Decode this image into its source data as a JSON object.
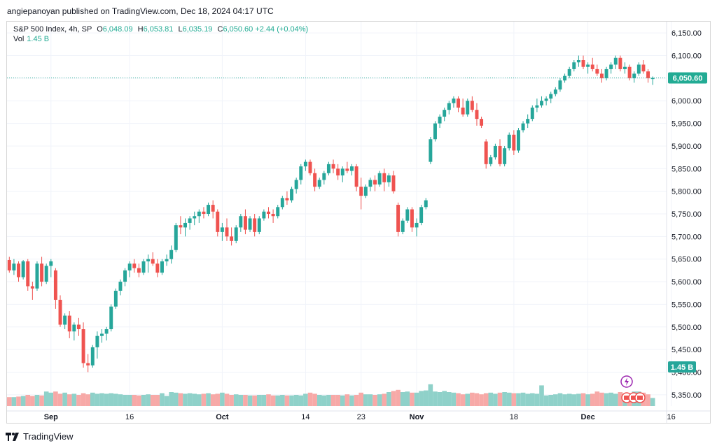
{
  "header": {
    "published": "angiepanoyan published on TradingView.com, Dec 18, 2024 04:17 UTC"
  },
  "legend": {
    "symbol": "S&P 500 Index, 4h, SP",
    "o_label": "O",
    "open": "6,048.09",
    "h_label": "H",
    "high": "6,053.81",
    "l_label": "L",
    "low": "6,035.19",
    "c_label": "C",
    "close": "6,050.60",
    "change": "+2.44 (+0.04%)",
    "vol_label": "Vol",
    "vol_value": "1.45 B"
  },
  "footer": {
    "brand": "TradingView",
    "logo_icon": "tradingview-logo-icon"
  },
  "colors": {
    "up": "#26a69a",
    "down": "#ef5350",
    "up_vol": "#8fd1c9",
    "down_vol": "#f7a9a7",
    "last": "#22ab94",
    "grid": "#f0f3fa"
  },
  "chart_data": {
    "type": "candlestick",
    "title": "S&P 500 Index, 4h, SP",
    "ylim": [
      5325,
      6175
    ],
    "y_ticks": [
      "6,150.00",
      "6,100.00",
      "6,050.00",
      "6,000.00",
      "5,950.00",
      "5,900.00",
      "5,850.00",
      "5,800.00",
      "5,750.00",
      "5,700.00",
      "5,650.00",
      "5,600.00",
      "5,550.00",
      "5,500.00",
      "5,450.00",
      "5,400.00",
      "5,350.00"
    ],
    "x_ticks": [
      {
        "label": "Sep",
        "i": 9
      },
      {
        "label": "16",
        "i": 26
      },
      {
        "label": "Oct",
        "i": 46
      },
      {
        "label": "14",
        "i": 64
      },
      {
        "label": "23",
        "i": 76
      },
      {
        "label": "Nov",
        "i": 88
      },
      {
        "label": "18",
        "i": 109
      },
      {
        "label": "Dec",
        "i": 125
      },
      {
        "label": "16",
        "i": 143
      }
    ],
    "last_price": 6050.6,
    "last_price_label": "6,050.60",
    "volume_label": "1.45 B",
    "volume_max": 9.0,
    "candles": [
      [
        5648,
        5655,
        5620,
        5625,
        1.6
      ],
      [
        5625,
        5650,
        5615,
        5640,
        1.6
      ],
      [
        5640,
        5645,
        5600,
        5610,
        1.7
      ],
      [
        5610,
        5648,
        5605,
        5645,
        1.8
      ],
      [
        5645,
        5650,
        5580,
        5590,
        2.0
      ],
      [
        5590,
        5600,
        5560,
        5585,
        1.8
      ],
      [
        5585,
        5645,
        5580,
        5640,
        2.0
      ],
      [
        5640,
        5655,
        5590,
        5600,
        1.9
      ],
      [
        5600,
        5640,
        5595,
        5635,
        2.6
      ],
      [
        5635,
        5650,
        5610,
        5645,
        2.4
      ],
      [
        5625,
        5630,
        5540,
        5560,
        2.6
      ],
      [
        5560,
        5570,
        5500,
        5505,
        2.2
      ],
      [
        5505,
        5530,
        5495,
        5525,
        2.4
      ],
      [
        5525,
        5535,
        5475,
        5490,
        2.1
      ],
      [
        5490,
        5510,
        5470,
        5505,
        2.2
      ],
      [
        5505,
        5520,
        5480,
        5495,
        2.0
      ],
      [
        5495,
        5510,
        5410,
        5420,
        2.3
      ],
      [
        5420,
        5440,
        5400,
        5415,
        2.1
      ],
      [
        5415,
        5460,
        5410,
        5455,
        2.4
      ],
      [
        5455,
        5490,
        5430,
        5480,
        2.2
      ],
      [
        5480,
        5495,
        5465,
        5485,
        2.3
      ],
      [
        5485,
        5500,
        5470,
        5495,
        2.2
      ],
      [
        5495,
        5550,
        5490,
        5545,
        2.3
      ],
      [
        5545,
        5585,
        5540,
        5580,
        2.2
      ],
      [
        5580,
        5605,
        5570,
        5600,
        2.1
      ],
      [
        5600,
        5630,
        5590,
        5625,
        2.0
      ],
      [
        5625,
        5645,
        5610,
        5640,
        2.0
      ],
      [
        5640,
        5650,
        5620,
        5630,
        2.0
      ],
      [
        5630,
        5640,
        5610,
        5620,
        1.9
      ],
      [
        5620,
        5650,
        5615,
        5645,
        2.0
      ],
      [
        5645,
        5660,
        5620,
        5650,
        2.1
      ],
      [
        5650,
        5665,
        5635,
        5640,
        2.0
      ],
      [
        5640,
        5650,
        5610,
        5620,
        2.0
      ],
      [
        5620,
        5650,
        5615,
        5645,
        2.3
      ],
      [
        5645,
        5660,
        5635,
        5650,
        1.8
      ],
      [
        5650,
        5680,
        5640,
        5670,
        2.5
      ],
      [
        5670,
        5730,
        5665,
        5725,
        2.4
      ],
      [
        5725,
        5745,
        5705,
        5720,
        2.3
      ],
      [
        5720,
        5740,
        5700,
        5730,
        2.2
      ],
      [
        5730,
        5745,
        5715,
        5740,
        2.3
      ],
      [
        5740,
        5755,
        5725,
        5745,
        2.2
      ],
      [
        5745,
        5760,
        5730,
        5755,
        2.1
      ],
      [
        5755,
        5765,
        5740,
        5750,
        2.2
      ],
      [
        5750,
        5775,
        5745,
        5770,
        2.3
      ],
      [
        5770,
        5780,
        5740,
        5755,
        2.1
      ],
      [
        5755,
        5760,
        5700,
        5710,
        2.2
      ],
      [
        5710,
        5730,
        5690,
        5720,
        2.4
      ],
      [
        5720,
        5740,
        5690,
        5700,
        2.2
      ],
      [
        5700,
        5720,
        5680,
        5690,
        2.0
      ],
      [
        5690,
        5725,
        5685,
        5720,
        2.1
      ],
      [
        5720,
        5750,
        5710,
        5745,
        2.0
      ],
      [
        5745,
        5760,
        5705,
        5715,
        2.0
      ],
      [
        5715,
        5745,
        5710,
        5740,
        1.9
      ],
      [
        5740,
        5750,
        5700,
        5710,
        1.9
      ],
      [
        5710,
        5745,
        5705,
        5740,
        2.0
      ],
      [
        5740,
        5760,
        5735,
        5755,
        2.0
      ],
      [
        5755,
        5765,
        5740,
        5750,
        2.1
      ],
      [
        5750,
        5760,
        5730,
        5745,
        1.9
      ],
      [
        5745,
        5770,
        5740,
        5765,
        1.9
      ],
      [
        5765,
        5790,
        5760,
        5785,
        2.0
      ],
      [
        5785,
        5800,
        5770,
        5780,
        1.9
      ],
      [
        5780,
        5810,
        5775,
        5805,
        1.9
      ],
      [
        5805,
        5830,
        5795,
        5825,
        2.0
      ],
      [
        5825,
        5860,
        5815,
        5855,
        1.9
      ],
      [
        5855,
        5870,
        5845,
        5865,
        2.2
      ],
      [
        5865,
        5870,
        5835,
        5840,
        2.4
      ],
      [
        5840,
        5850,
        5800,
        5810,
        2.2
      ],
      [
        5810,
        5830,
        5805,
        5825,
        2.0
      ],
      [
        5825,
        5845,
        5815,
        5840,
        1.9
      ],
      [
        5840,
        5865,
        5835,
        5860,
        2.0
      ],
      [
        5860,
        5870,
        5840,
        5850,
        2.0
      ],
      [
        5850,
        5860,
        5825,
        5835,
        2.0
      ],
      [
        5835,
        5855,
        5820,
        5850,
        1.9
      ],
      [
        5850,
        5865,
        5840,
        5845,
        2.1
      ],
      [
        5845,
        5860,
        5835,
        5855,
        1.9
      ],
      [
        5855,
        5860,
        5800,
        5810,
        2.0
      ],
      [
        5810,
        5830,
        5760,
        5790,
        2.4
      ],
      [
        5790,
        5815,
        5785,
        5810,
        2.1
      ],
      [
        5810,
        5830,
        5800,
        5825,
        2.1
      ],
      [
        5825,
        5835,
        5800,
        5815,
        2.0
      ],
      [
        5815,
        5845,
        5810,
        5840,
        2.1
      ],
      [
        5840,
        5850,
        5800,
        5820,
        2.2
      ],
      [
        5820,
        5840,
        5810,
        5835,
        2.5
      ],
      [
        5835,
        5845,
        5795,
        5800,
        2.7
      ],
      [
        5770,
        5775,
        5700,
        5710,
        2.9
      ],
      [
        5710,
        5740,
        5705,
        5735,
        2.5
      ],
      [
        5735,
        5765,
        5730,
        5760,
        2.6
      ],
      [
        5760,
        5765,
        5710,
        5720,
        2.4
      ],
      [
        5720,
        5740,
        5700,
        5730,
        2.4
      ],
      [
        5730,
        5770,
        5725,
        5765,
        2.7
      ],
      [
        5765,
        5785,
        5760,
        5780,
        2.8
      ],
      [
        5865,
        5920,
        5860,
        5915,
        3.9
      ],
      [
        5915,
        5955,
        5910,
        5950,
        2.6
      ],
      [
        5950,
        5970,
        5940,
        5965,
        2.5
      ],
      [
        5965,
        5985,
        5955,
        5980,
        2.7
      ],
      [
        5980,
        6000,
        5970,
        5995,
        2.5
      ],
      [
        5995,
        6010,
        5985,
        6005,
        2.4
      ],
      [
        6005,
        6010,
        5975,
        5985,
        2.3
      ],
      [
        5985,
        6005,
        5965,
        5970,
        2.1
      ],
      [
        5970,
        6005,
        5965,
        6000,
        2.2
      ],
      [
        6000,
        6010,
        5975,
        5980,
        2.4
      ],
      [
        5980,
        5995,
        5945,
        5960,
        2.3
      ],
      [
        5960,
        5965,
        5940,
        5945,
        2.1
      ],
      [
        5910,
        5915,
        5850,
        5860,
        2.3
      ],
      [
        5860,
        5880,
        5855,
        5875,
        2.4
      ],
      [
        5875,
        5905,
        5870,
        5900,
        2.2
      ],
      [
        5900,
        5915,
        5855,
        5860,
        2.4
      ],
      [
        5860,
        5900,
        5855,
        5895,
        2.5
      ],
      [
        5895,
        5930,
        5890,
        5925,
        2.4
      ],
      [
        5925,
        5935,
        5880,
        5890,
        2.3
      ],
      [
        5890,
        5940,
        5885,
        5935,
        2.3
      ],
      [
        5935,
        5955,
        5930,
        5950,
        2.4
      ],
      [
        5950,
        5970,
        5940,
        5960,
        2.2
      ],
      [
        5960,
        5990,
        5955,
        5985,
        2.3
      ],
      [
        5985,
        6005,
        5975,
        5990,
        2.2
      ],
      [
        5990,
        6010,
        5985,
        6000,
        3.7
      ],
      [
        6000,
        6010,
        5990,
        6005,
        1.9
      ],
      [
        6005,
        6020,
        5995,
        6015,
        2.0
      ],
      [
        6015,
        6030,
        6010,
        6025,
        2.1
      ],
      [
        6025,
        6050,
        6020,
        6045,
        2.3
      ],
      [
        6045,
        6060,
        6040,
        6055,
        2.1
      ],
      [
        6055,
        6075,
        6050,
        6070,
        2.2
      ],
      [
        6070,
        6090,
        6065,
        6085,
        2.1
      ],
      [
        6085,
        6100,
        6075,
        6090,
        2.2
      ],
      [
        6090,
        6100,
        6070,
        6075,
        2.3
      ],
      [
        6075,
        6085,
        6060,
        6080,
        2.1
      ],
      [
        6080,
        6095,
        6065,
        6070,
        2.2
      ],
      [
        6070,
        6080,
        6055,
        6060,
        2.6
      ],
      [
        6060,
        6070,
        6040,
        6050,
        2.4
      ],
      [
        6050,
        6075,
        6045,
        6070,
        2.3
      ],
      [
        6070,
        6085,
        6060,
        6080,
        2.4
      ],
      [
        6080,
        6100,
        6070,
        6095,
        2.2
      ],
      [
        6095,
        6100,
        6065,
        6070,
        2.5
      ],
      [
        6070,
        6085,
        6060,
        6075,
        2.2
      ],
      [
        6075,
        6080,
        6045,
        6050,
        2.3
      ],
      [
        6050,
        6065,
        6040,
        6060,
        2.6
      ],
      [
        6060,
        6085,
        6055,
        6080,
        2.6
      ],
      [
        6080,
        6090,
        6060,
        6065,
        2.4
      ],
      [
        6065,
        6070,
        6040,
        6050,
        2.1
      ],
      [
        6048.09,
        6053.81,
        6035.19,
        6050.6,
        1.45
      ]
    ]
  }
}
